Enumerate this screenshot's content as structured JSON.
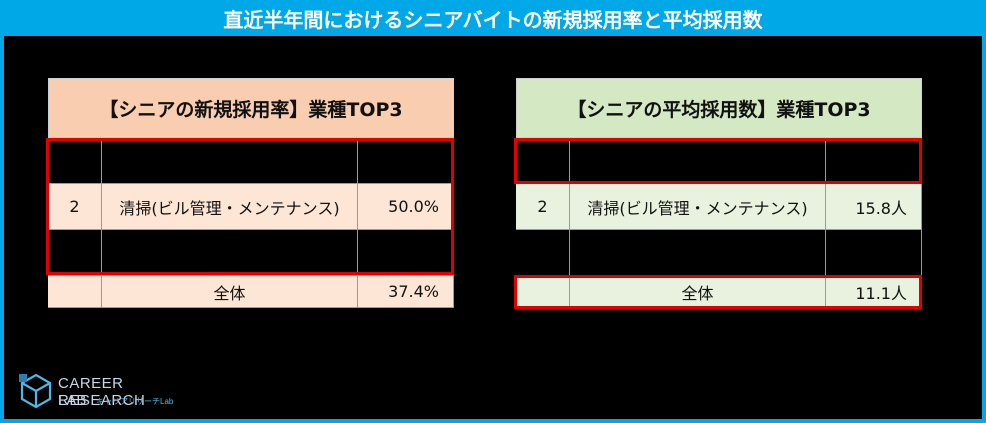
{
  "title": "直近半年間におけるシニアバイトの新規採用率と平均採用数",
  "colors": {
    "title_bar": "#00a8e8",
    "left_header_bg": "#f8cdb0",
    "left_row_bg": "#fde6d6",
    "right_header_bg": "#d5e8c4",
    "right_row_bg": "#e8f2df",
    "highlight_border": "#e00000"
  },
  "left_table": {
    "header": "【シニアの新規採用率】業種TOP3",
    "rows": [
      {
        "rank": "",
        "industry": "",
        "value": ""
      },
      {
        "rank": "2",
        "industry": "清掃(ビル管理・メンテナンス)",
        "value": "50.0%"
      },
      {
        "rank": "",
        "industry": "",
        "value": ""
      }
    ],
    "total": {
      "label": "全体",
      "value": "37.4%"
    }
  },
  "right_table": {
    "header": "【シニアの平均採用数】業種TOP3",
    "rows": [
      {
        "rank": "",
        "industry": "",
        "value": ""
      },
      {
        "rank": "2",
        "industry": "清掃(ビル管理・メンテナンス)",
        "value": "15.8人"
      },
      {
        "rank": "",
        "industry": "",
        "value": ""
      }
    ],
    "total": {
      "label": "全体",
      "value": "11.1人"
    }
  },
  "logo": {
    "line1": "CAREER RESEARCH",
    "line2": "LAB",
    "kana": "キャリアリサーチLab",
    "icon": "cube-logo-icon"
  }
}
